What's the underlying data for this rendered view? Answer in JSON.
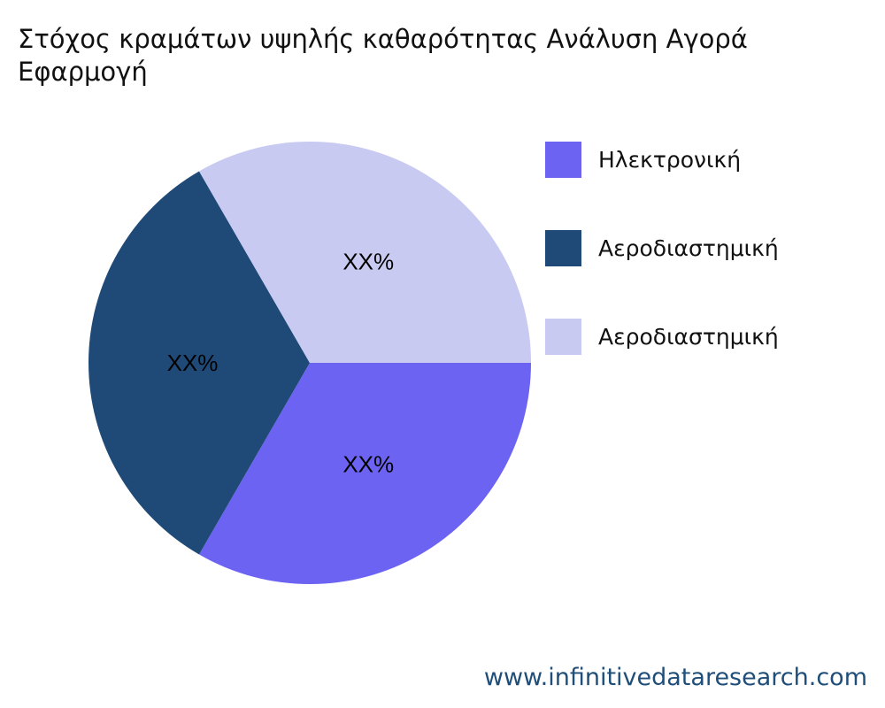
{
  "chart_data": {
    "type": "pie",
    "title_lines": [
      "Στόχος κραμάτων υψηλής καθαρότητας Ανάλυση Αγορά",
      "Εφαρμογή"
    ],
    "slices": [
      {
        "name": "Ηλεκτρονική",
        "value": 33.33,
        "label": "XX%",
        "color": "#6c63f3"
      },
      {
        "name": "Αεροδιαστημική",
        "value": 33.33,
        "label": "XX%",
        "color": "#1f4a78"
      },
      {
        "name": "Αεροδιαστημική",
        "value": 33.33,
        "label": "XX%",
        "color": "#c9caf1"
      }
    ],
    "legend_position": "right"
  },
  "footer": {
    "url": "www.infinitivedataresearch.com"
  }
}
